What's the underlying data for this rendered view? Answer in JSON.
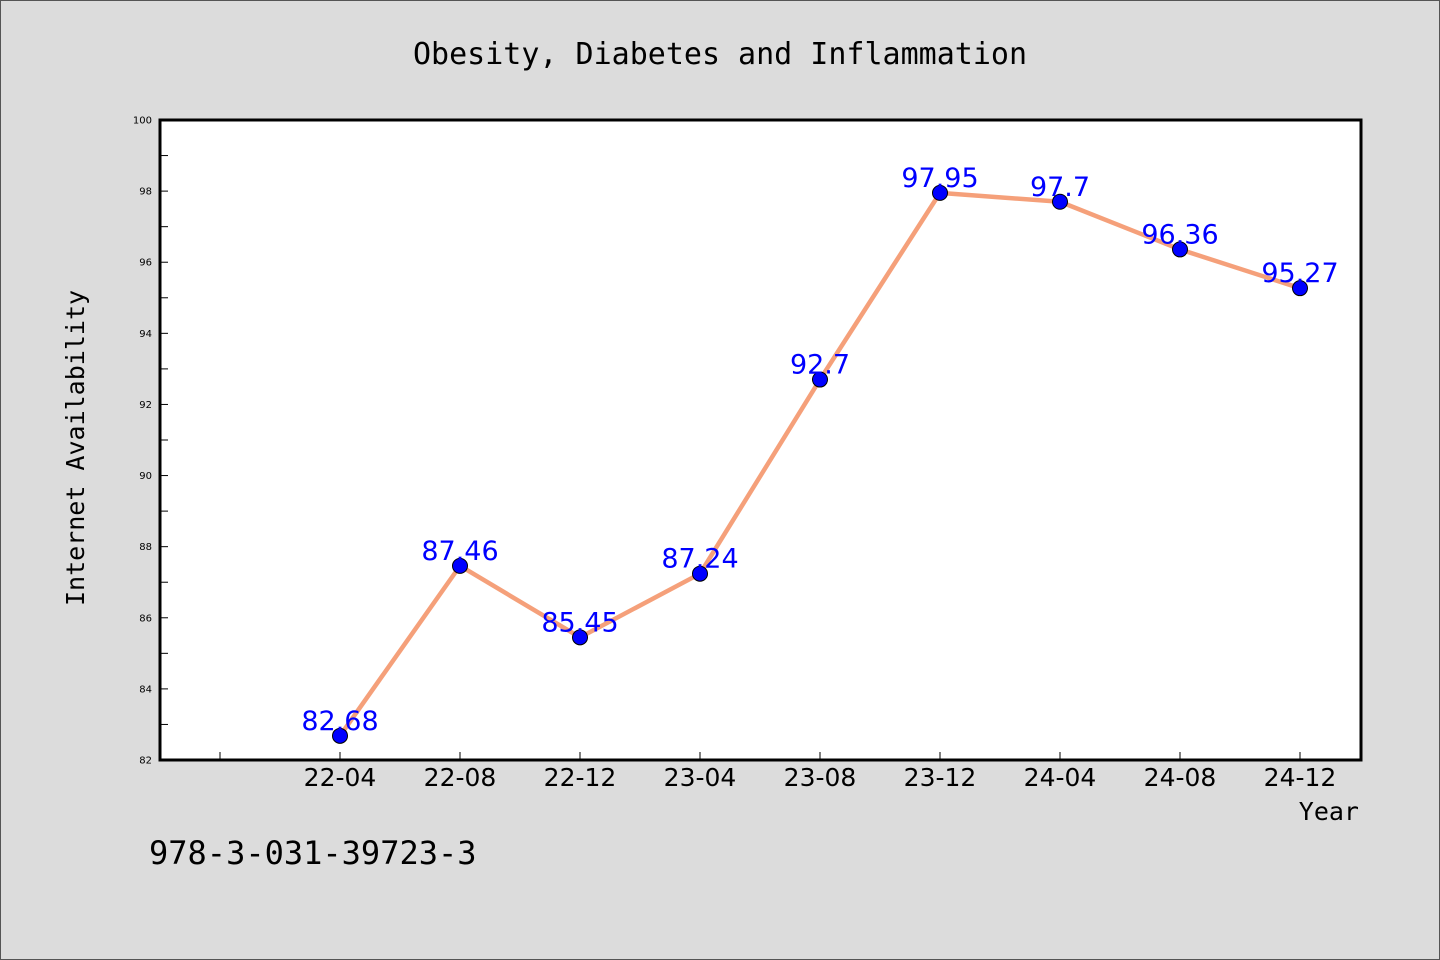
{
  "chart_data": {
    "type": "line",
    "title": "Obesity, Diabetes and Inflammation",
    "xlabel": "Year",
    "ylabel": "Internet Availability",
    "categories": [
      "22-04",
      "22-08",
      "22-12",
      "23-04",
      "23-08",
      "23-12",
      "24-04",
      "24-08",
      "24-12"
    ],
    "series": [
      {
        "values": [
          82.68,
          87.46,
          85.45,
          87.24,
          92.7,
          97.95,
          97.7,
          96.36,
          95.27
        ],
        "labels": [
          "82.68",
          "87.46",
          "85.45",
          "87.24",
          "92.7",
          "97.95",
          "97.7",
          "96.36",
          "95.27"
        ],
        "line_color": "#f5a07a",
        "marker_color": "#0000ff"
      }
    ],
    "ylim": [
      82,
      100
    ],
    "yticks": [
      82,
      84,
      86,
      88,
      90,
      92,
      94,
      96,
      98,
      100
    ],
    "grid": false,
    "legend": false
  },
  "footer": {
    "isbn": "978-3-031-39723-3"
  }
}
